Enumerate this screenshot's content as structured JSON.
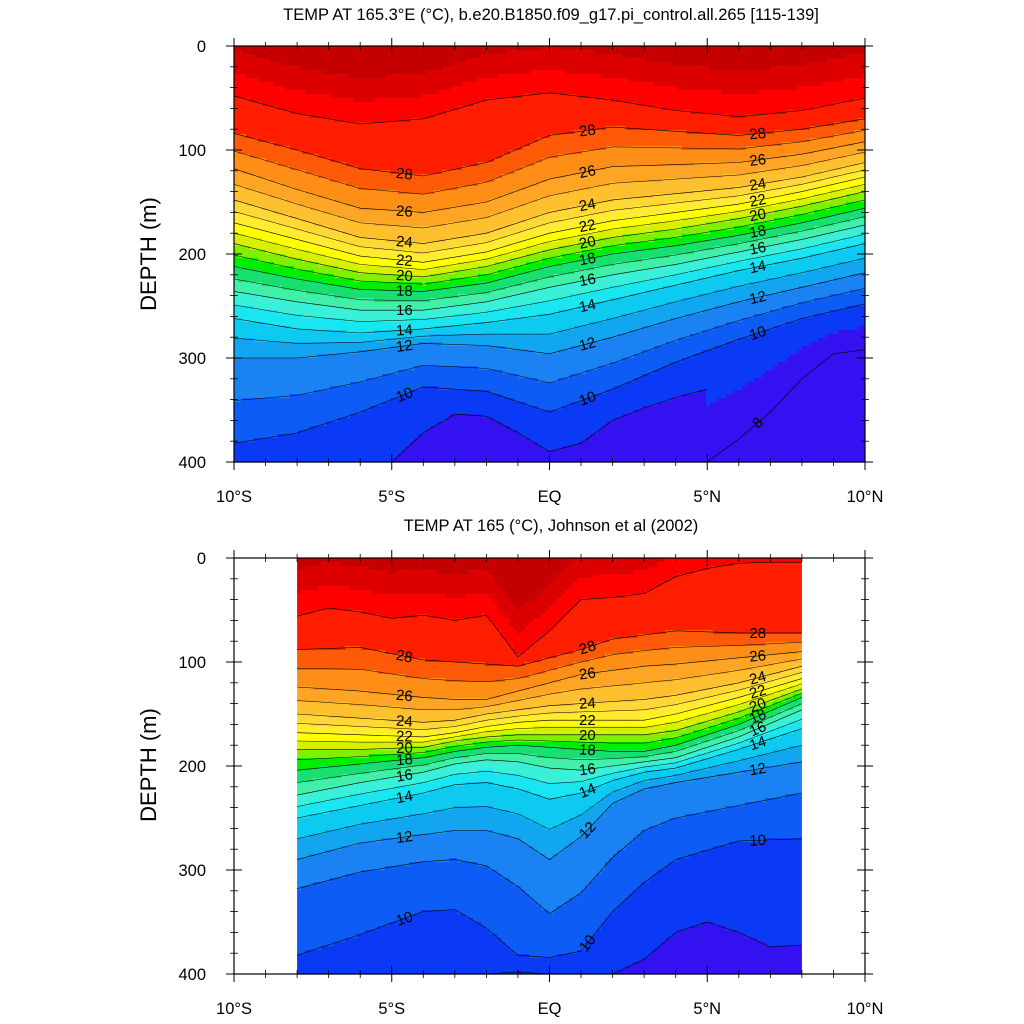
{
  "chart_data": [
    {
      "type": "contour",
      "title": "TEMP AT 165.3°E (°C), b.e20.B1850.f09_g17.pi_control.all.265 [115-139]",
      "xlabel": "",
      "ylabel": "DEPTH (m)",
      "xlim": [
        -10,
        10
      ],
      "ylim": [
        400,
        0
      ],
      "data_extent_x": [
        -10,
        10
      ],
      "x_ticks": [
        "10°S",
        "5°S",
        "EQ",
        "5°N",
        "10°N"
      ],
      "y_ticks": [
        "0",
        "100",
        "200",
        "300",
        "400"
      ],
      "contour_interval": 1,
      "labeled_levels": [
        28,
        26,
        24,
        22,
        20,
        18,
        16,
        14,
        12,
        10,
        8
      ],
      "isotherms": [
        {
          "level": 29,
          "x": [
            -10,
            -8,
            -6,
            -4,
            -2,
            0,
            2,
            4,
            6,
            8,
            10
          ],
          "depth": [
            48,
            65,
            75,
            70,
            52,
            45,
            52,
            62,
            68,
            62,
            50
          ]
        },
        {
          "level": 28,
          "x": [
            -10,
            -8,
            -6,
            -4,
            -2,
            0,
            2,
            4,
            6,
            8,
            10
          ],
          "depth": [
            84,
            100,
            118,
            125,
            112,
            86,
            78,
            82,
            86,
            80,
            70
          ]
        },
        {
          "level": 26,
          "x": [
            -10,
            -8,
            -6,
            -4,
            -2,
            0,
            2,
            4,
            6,
            8,
            10
          ],
          "depth": [
            118,
            138,
            156,
            160,
            150,
            128,
            116,
            114,
            112,
            104,
            92
          ]
        },
        {
          "level": 24,
          "x": [
            -10,
            -8,
            -6,
            -4,
            -2,
            0,
            2,
            4,
            6,
            8,
            10
          ],
          "depth": [
            148,
            166,
            184,
            190,
            180,
            160,
            148,
            142,
            136,
            126,
            112
          ]
        },
        {
          "level": 22,
          "x": [
            -10,
            -8,
            -6,
            -4,
            -2,
            0,
            2,
            4,
            6,
            8,
            10
          ],
          "depth": [
            170,
            186,
            202,
            208,
            198,
            180,
            168,
            160,
            152,
            140,
            126
          ]
        },
        {
          "level": 20,
          "x": [
            -10,
            -8,
            -6,
            -4,
            -2,
            0,
            2,
            4,
            6,
            8,
            10
          ],
          "depth": [
            190,
            205,
            218,
            222,
            212,
            196,
            184,
            176,
            166,
            154,
            140
          ]
        },
        {
          "level": 18,
          "x": [
            -10,
            -8,
            -6,
            -4,
            -2,
            0,
            2,
            4,
            6,
            8,
            10
          ],
          "depth": [
            212,
            224,
            234,
            236,
            228,
            212,
            200,
            192,
            182,
            170,
            156
          ]
        },
        {
          "level": 16,
          "x": [
            -10,
            -8,
            -6,
            -4,
            -2,
            0,
            2,
            4,
            6,
            8,
            10
          ],
          "depth": [
            236,
            246,
            254,
            254,
            246,
            232,
            220,
            210,
            198,
            186,
            172
          ]
        },
        {
          "level": 14,
          "x": [
            -10,
            -8,
            -6,
            -4,
            -2,
            0,
            2,
            4,
            6,
            8,
            10
          ],
          "depth": [
            262,
            272,
            276,
            272,
            266,
            258,
            244,
            230,
            216,
            204,
            190
          ]
        },
        {
          "level": 12,
          "x": [
            -10,
            -8,
            -6,
            -4,
            -2,
            0,
            2,
            4,
            6,
            8,
            10
          ],
          "depth": [
            300,
            300,
            294,
            286,
            288,
            296,
            280,
            262,
            246,
            232,
            218
          ]
        },
        {
          "level": 10,
          "x": [
            -10,
            -8,
            -6,
            -4,
            -2,
            0,
            2,
            4,
            6,
            8,
            10
          ],
          "depth": [
            382,
            372,
            352,
            328,
            332,
            352,
            330,
            304,
            282,
            262,
            248
          ]
        },
        {
          "level": 9,
          "x": [
            -5,
            -4,
            -3,
            -2,
            -1,
            0,
            1,
            2,
            3,
            4,
            5
          ],
          "depth": [
            400,
            372,
            354,
            356,
            372,
            390,
            382,
            360,
            348,
            338,
            330
          ]
        },
        {
          "level": 8,
          "x": [
            5,
            6,
            7,
            8,
            9,
            10
          ],
          "depth": [
            400,
            378,
            352,
            320,
            296,
            292
          ]
        }
      ]
    },
    {
      "type": "contour",
      "title": "TEMP AT 165 (°C), Johnson et al (2002)",
      "xlabel": "",
      "ylabel": "DEPTH (m)",
      "xlim": [
        -10,
        10
      ],
      "ylim": [
        400,
        0
      ],
      "data_extent_x": [
        -8,
        8
      ],
      "x_ticks": [
        "10°S",
        "5°S",
        "EQ",
        "5°N",
        "10°N"
      ],
      "y_ticks": [
        "0",
        "100",
        "200",
        "300",
        "400"
      ],
      "contour_interval": 1,
      "labeled_levels": [
        28,
        26,
        24,
        22,
        20,
        18,
        16,
        14,
        12,
        10
      ],
      "isotherms": [
        {
          "level": 29,
          "x": [
            -8,
            -7,
            -6,
            -5,
            -4,
            -3,
            -2,
            -1,
            0,
            1,
            2,
            3,
            4,
            5,
            6,
            7,
            8
          ],
          "depth": [
            56,
            48,
            52,
            58,
            55,
            60,
            55,
            95,
            70,
            40,
            38,
            34,
            18,
            10,
            5,
            4,
            4
          ]
        },
        {
          "level": 28,
          "x": [
            -8,
            -6,
            -4,
            -2,
            -1,
            0,
            1,
            2,
            3,
            4,
            6,
            8
          ],
          "depth": [
            88,
            86,
            98,
            102,
            104,
            96,
            88,
            78,
            74,
            70,
            72,
            72
          ]
        },
        {
          "level": 26,
          "x": [
            -8,
            -6,
            -4,
            -3,
            -2,
            -1,
            0,
            1,
            2,
            3,
            4,
            6,
            8
          ],
          "depth": [
            124,
            128,
            134,
            136,
            136,
            128,
            120,
            112,
            108,
            104,
            102,
            96,
            90
          ]
        },
        {
          "level": 24,
          "x": [
            -8,
            -6,
            -4,
            -3,
            -2,
            -1,
            0,
            1,
            2,
            3,
            4,
            6,
            8
          ],
          "depth": [
            150,
            154,
            158,
            156,
            150,
            146,
            142,
            140,
            138,
            136,
            132,
            120,
            104
          ]
        },
        {
          "level": 22,
          "x": [
            -8,
            -6,
            -4,
            -3,
            -2,
            -1,
            0,
            1,
            2,
            3,
            4,
            6,
            8
          ],
          "depth": [
            168,
            170,
            172,
            168,
            162,
            158,
            156,
            156,
            156,
            156,
            150,
            134,
            116
          ]
        },
        {
          "level": 20,
          "x": [
            -8,
            -6,
            -4,
            -3,
            -2,
            -1,
            0,
            1,
            2,
            3,
            4,
            6,
            8
          ],
          "depth": [
            184,
            184,
            182,
            176,
            172,
            170,
            170,
            170,
            170,
            170,
            166,
            148,
            126
          ]
        },
        {
          "level": 18,
          "x": [
            -8,
            -6,
            -4,
            -3,
            -2,
            -1,
            0,
            1,
            2,
            3,
            4,
            6,
            8
          ],
          "depth": [
            204,
            198,
            192,
            186,
            182,
            180,
            182,
            184,
            186,
            186,
            180,
            160,
            134
          ]
        },
        {
          "level": 16,
          "x": [
            -8,
            -6,
            -4,
            -3,
            -2,
            -1,
            0,
            1,
            2,
            3,
            4,
            6,
            8
          ],
          "depth": [
            228,
            216,
            206,
            198,
            194,
            196,
            202,
            204,
            200,
            196,
            192,
            172,
            146
          ]
        },
        {
          "level": 14,
          "x": [
            -8,
            -6,
            -4,
            -3,
            -2,
            -1,
            0,
            1,
            2,
            3,
            4,
            6,
            8
          ],
          "depth": [
            250,
            238,
            226,
            218,
            216,
            222,
            232,
            226,
            214,
            206,
            202,
            184,
            164
          ]
        },
        {
          "level": 12,
          "x": [
            -8,
            -6,
            -4,
            -3,
            -2,
            -1,
            0,
            1,
            2,
            3,
            4,
            6,
            8
          ],
          "depth": [
            290,
            274,
            266,
            262,
            262,
            270,
            290,
            268,
            236,
            222,
            216,
            206,
            196
          ]
        },
        {
          "level": 11,
          "x": [
            -8,
            -6,
            -4,
            -3,
            -2,
            -1,
            0,
            1,
            2,
            3,
            4,
            6,
            8
          ],
          "depth": [
            318,
            302,
            292,
            290,
            296,
            316,
            342,
            322,
            288,
            262,
            250,
            238,
            226
          ]
        },
        {
          "level": 10,
          "x": [
            -8,
            -6,
            -4,
            -3,
            -2,
            -1,
            0,
            1,
            2,
            3,
            4,
            6,
            8
          ],
          "depth": [
            382,
            362,
            340,
            338,
            356,
            382,
            384,
            378,
            340,
            312,
            290,
            272,
            270
          ]
        },
        {
          "level": 9,
          "x": [
            -2,
            -1,
            0,
            1,
            2,
            3,
            4,
            5,
            6,
            7,
            8
          ],
          "depth": [
            400,
            398,
            400,
            400,
            400,
            386,
            360,
            350,
            360,
            374,
            372
          ]
        }
      ]
    }
  ]
}
